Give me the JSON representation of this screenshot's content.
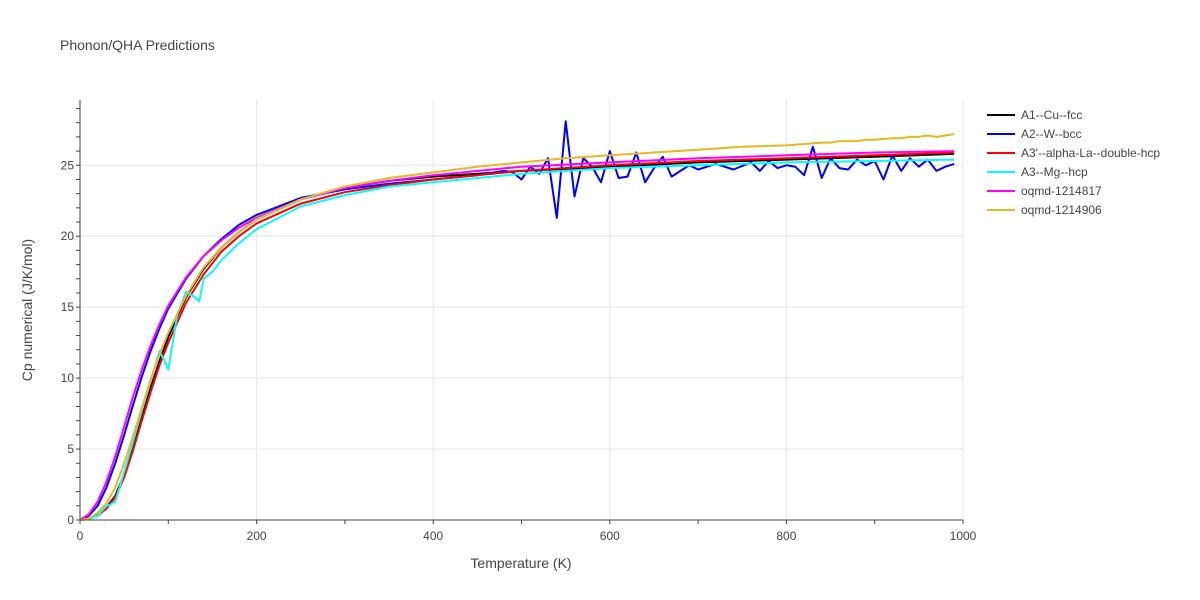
{
  "chart_data": {
    "type": "line",
    "title": "Phonon/QHA Predictions",
    "xlabel": "Temperature (K)",
    "ylabel": "Cp numerical (J/K/mol)",
    "xlim": [
      0,
      1000
    ],
    "ylim": [
      0,
      29.6
    ],
    "xticks": [
      0,
      200,
      400,
      600,
      800,
      1000
    ],
    "yticks": [
      0,
      5,
      10,
      15,
      20,
      25
    ],
    "grid": true,
    "legend": "right",
    "series": [
      {
        "name": "A1--Cu--fcc",
        "color": "#000000",
        "x": [
          0,
          10,
          20,
          30,
          40,
          50,
          60,
          70,
          80,
          90,
          100,
          120,
          140,
          160,
          180,
          200,
          250,
          300,
          350,
          400,
          500,
          600,
          700,
          800,
          900,
          990
        ],
        "y": [
          0,
          0.1,
          0.4,
          0.9,
          1.7,
          3.2,
          5.1,
          7.2,
          9.3,
          11.2,
          12.9,
          15.7,
          17.7,
          19.2,
          20.3,
          21.2,
          22.6,
          23.4,
          23.9,
          24.2,
          24.6,
          24.9,
          25.2,
          25.4,
          25.6,
          25.8
        ]
      },
      {
        "name": "A2--W--bcc",
        "color": "#0000ff",
        "x": [
          0,
          10,
          20,
          30,
          40,
          50,
          60,
          70,
          80,
          90,
          100,
          120,
          140,
          160,
          180,
          200,
          250,
          300,
          350,
          400,
          450,
          480,
          490,
          500,
          510,
          520,
          530,
          540,
          550,
          560,
          570,
          580,
          590,
          600,
          610,
          620,
          630,
          640,
          650,
          660,
          670,
          680,
          690,
          700,
          720,
          740,
          760,
          770,
          780,
          790,
          800,
          810,
          820,
          830,
          840,
          850,
          860,
          870,
          880,
          890,
          900,
          910,
          920,
          930,
          940,
          950,
          960,
          970,
          980,
          990
        ],
        "y": [
          0,
          0.3,
          1.0,
          2.3,
          4.0,
          6.0,
          8.1,
          10.1,
          11.9,
          13.5,
          14.9,
          17.0,
          18.6,
          19.8,
          20.8,
          21.5,
          22.7,
          23.3,
          23.7,
          24.0,
          24.3,
          24.6,
          24.5,
          24.0,
          24.9,
          24.4,
          25.5,
          21.3,
          28.1,
          22.8,
          25.5,
          24.9,
          23.8,
          26.0,
          24.1,
          24.2,
          25.9,
          23.8,
          24.8,
          25.6,
          24.2,
          24.6,
          25.0,
          24.7,
          25.1,
          24.7,
          25.2,
          24.6,
          25.3,
          24.8,
          25.0,
          24.9,
          24.3,
          26.3,
          24.1,
          25.5,
          24.8,
          24.7,
          25.4,
          25.0,
          25.3,
          24.0,
          25.7,
          24.6,
          25.5,
          24.9,
          25.4,
          24.6,
          24.9,
          25.1
        ]
      },
      {
        "name": "A3'--alpha-La--double-hcp",
        "color": "#ff0000",
        "x": [
          0,
          10,
          20,
          30,
          40,
          50,
          60,
          70,
          80,
          90,
          100,
          120,
          140,
          160,
          180,
          200,
          250,
          300,
          350,
          400,
          500,
          600,
          700,
          800,
          900,
          990
        ],
        "y": [
          0,
          0.1,
          0.3,
          0.8,
          1.6,
          3.0,
          4.9,
          7.0,
          9.0,
          10.9,
          12.5,
          15.3,
          17.3,
          18.9,
          20.0,
          20.9,
          22.3,
          23.1,
          23.6,
          24.0,
          24.6,
          25.0,
          25.3,
          25.5,
          25.7,
          25.9
        ]
      },
      {
        "name": "A3--Mg--hcp",
        "color": "#00ffff",
        "x": [
          0,
          10,
          20,
          30,
          35,
          40,
          50,
          60,
          70,
          80,
          90,
          95,
          100,
          110,
          120,
          130,
          135,
          140,
          150,
          160,
          180,
          200,
          250,
          300,
          350,
          400,
          500,
          600,
          700,
          800,
          900,
          990
        ],
        "y": [
          0,
          0.05,
          0.3,
          1.0,
          1.1,
          1.3,
          3.4,
          5.5,
          7.7,
          9.8,
          11.9,
          11.3,
          10.6,
          14.4,
          16.1,
          15.7,
          15.4,
          17.0,
          17.5,
          18.3,
          19.5,
          20.5,
          22.1,
          22.9,
          23.5,
          23.8,
          24.4,
          24.8,
          25.0,
          25.2,
          25.3,
          25.4
        ]
      },
      {
        "name": "oqmd-1214817",
        "color": "#ff00ff",
        "x": [
          0,
          10,
          20,
          30,
          40,
          50,
          60,
          70,
          80,
          90,
          100,
          120,
          140,
          160,
          180,
          200,
          250,
          300,
          350,
          400,
          500,
          600,
          700,
          800,
          900,
          990
        ],
        "y": [
          0,
          0.4,
          1.3,
          2.7,
          4.5,
          6.6,
          8.7,
          10.6,
          12.3,
          13.8,
          15.1,
          17.1,
          18.6,
          19.7,
          20.6,
          21.3,
          22.6,
          23.4,
          23.9,
          24.3,
          24.9,
          25.2,
          25.5,
          25.7,
          25.9,
          26.0
        ]
      },
      {
        "name": "oqmd-1214906",
        "color": "#e6b822",
        "x": [
          0,
          10,
          20,
          30,
          40,
          50,
          60,
          70,
          80,
          90,
          100,
          120,
          140,
          160,
          180,
          200,
          250,
          300,
          350,
          400,
          450,
          500,
          550,
          600,
          650,
          700,
          750,
          800,
          840,
          850,
          860,
          880,
          890,
          900,
          920,
          930,
          940,
          950,
          960,
          970,
          980,
          990
        ],
        "y": [
          0,
          0.1,
          0.5,
          1.2,
          2.3,
          4.0,
          5.9,
          7.9,
          9.9,
          11.7,
          13.2,
          15.8,
          17.8,
          19.2,
          20.3,
          21.2,
          22.6,
          23.5,
          24.1,
          24.5,
          24.9,
          25.2,
          25.5,
          25.7,
          25.9,
          26.1,
          26.3,
          26.4,
          26.6,
          26.6,
          26.7,
          26.7,
          26.8,
          26.8,
          26.9,
          26.9,
          27.0,
          27.0,
          27.1,
          27.0,
          27.1,
          27.2
        ]
      }
    ]
  }
}
